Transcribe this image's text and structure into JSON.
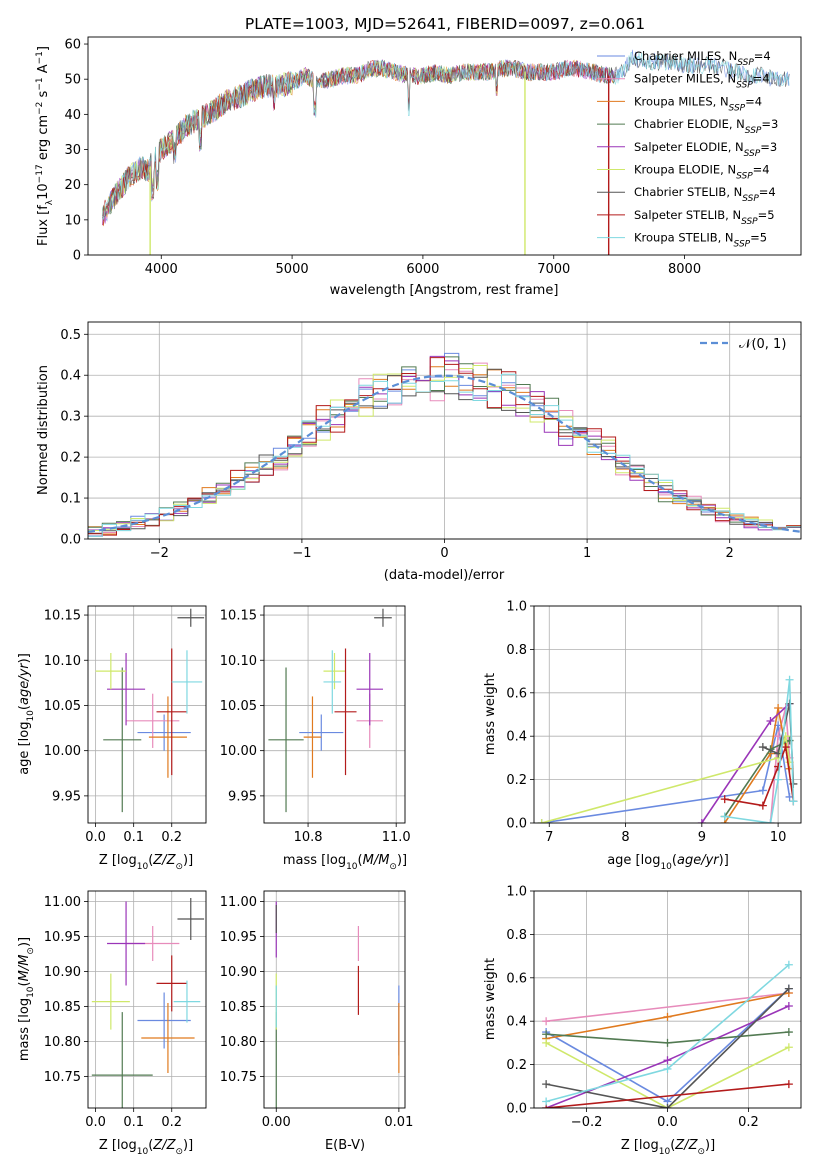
{
  "figure_title": "PLATE=1003, MJD=52641, FIBERID=0097, z=0.061",
  "colors": [
    "#6a8ae0",
    "#e78bbb",
    "#e07a1f",
    "#527a52",
    "#9a35b8",
    "#cfe86a",
    "#555555",
    "#b31b1b",
    "#7fd8e0"
  ],
  "chart_data": [
    {
      "id": "spectrum",
      "type": "line",
      "title": "PLATE=1003, MJD=52641, FIBERID=0097, z=0.061",
      "xlabel": "wavelength [Angstrom, rest frame]",
      "ylabel": "Flux [f",
      "ylabel_full": "Flux [fλ10⁻¹⁷ erg cm⁻² s⁻¹ A⁻¹]",
      "xlim": [
        3440,
        8890
      ],
      "ylim": [
        0,
        62
      ],
      "xticks": [
        4000,
        5000,
        6000,
        7000,
        8000
      ],
      "yticks": [
        0,
        10,
        20,
        30,
        40,
        50,
        60
      ],
      "legend_position": "right",
      "continuum": [
        [
          3550,
          11
        ],
        [
          3650,
          17
        ],
        [
          3750,
          22
        ],
        [
          3850,
          25
        ],
        [
          3900,
          24
        ],
        [
          3950,
          28
        ],
        [
          4000,
          30
        ],
        [
          4100,
          33
        ],
        [
          4200,
          37
        ],
        [
          4300,
          39
        ],
        [
          4400,
          41
        ],
        [
          4500,
          44
        ],
        [
          4600,
          45
        ],
        [
          4700,
          47
        ],
        [
          4800,
          48
        ],
        [
          4900,
          48
        ],
        [
          5000,
          49
        ],
        [
          5100,
          51
        ],
        [
          5200,
          49
        ],
        [
          5300,
          50
        ],
        [
          5400,
          51
        ],
        [
          5500,
          51
        ],
        [
          5600,
          53
        ],
        [
          5700,
          53
        ],
        [
          5800,
          52
        ],
        [
          5900,
          51
        ],
        [
          6000,
          51
        ],
        [
          6100,
          52
        ],
        [
          6200,
          51
        ],
        [
          6300,
          52
        ],
        [
          6400,
          52
        ],
        [
          6500,
          52
        ],
        [
          6600,
          53
        ],
        [
          6700,
          53
        ],
        [
          6800,
          52
        ],
        [
          6900,
          52
        ],
        [
          7000,
          52
        ],
        [
          7100,
          53
        ],
        [
          7200,
          53
        ],
        [
          7300,
          52
        ],
        [
          7400,
          51
        ],
        [
          7500,
          51
        ],
        [
          7600,
          56
        ],
        [
          7700,
          55
        ],
        [
          7800,
          55
        ],
        [
          7900,
          55
        ],
        [
          8000,
          54
        ],
        [
          8100,
          54
        ],
        [
          8200,
          54
        ],
        [
          8300,
          53
        ],
        [
          8400,
          52
        ],
        [
          8500,
          51
        ],
        [
          8600,
          51
        ],
        [
          8700,
          50
        ],
        [
          8780,
          50
        ]
      ],
      "dropouts": [
        {
          "series": 5,
          "x": 3915,
          "to": 0
        },
        {
          "series": 5,
          "x": 6780,
          "to": 0
        },
        {
          "series": 7,
          "x": 7420,
          "to": 0
        }
      ],
      "series": [
        {
          "name": "Chabrier MILES, N",
          "suffix": "SSP",
          "n": "=4",
          "xmax": 8800
        },
        {
          "name": "Salpeter MILES, N",
          "suffix": "SSP",
          "n": "=4",
          "xmax": 7480
        },
        {
          "name": "Kroupa MILES, N",
          "suffix": "SSP",
          "n": "=4",
          "xmax": 7480
        },
        {
          "name": "Chabrier ELODIE, N",
          "suffix": "SSP",
          "n": "=3",
          "xmax": 7480
        },
        {
          "name": "Salpeter ELODIE, N",
          "suffix": "SSP",
          "n": "=3",
          "xmax": 7480
        },
        {
          "name": "Kroupa ELODIE, N",
          "suffix": "SSP",
          "n": "=4",
          "xmax": 6800
        },
        {
          "name": "Chabrier STELIB, N",
          "suffix": "SSP",
          "n": "=4",
          "xmax": 8800
        },
        {
          "name": "Salpeter STELIB, N",
          "suffix": "SSP",
          "n": "=5",
          "xmax": 7420
        },
        {
          "name": "Kroupa STELIB, N",
          "suffix": "SSP",
          "n": "=5",
          "xmax": 8800
        }
      ]
    },
    {
      "id": "residuals",
      "type": "histogram",
      "xlabel": "(data-model)/error",
      "ylabel": "Normed distribution",
      "xlim": [
        -2.5,
        2.5
      ],
      "ylim": [
        0,
        0.53
      ],
      "xticks": [
        -2,
        -1,
        0,
        1,
        2
      ],
      "yticks": [
        0.0,
        0.1,
        0.2,
        0.3,
        0.4,
        0.5
      ],
      "grid": true,
      "legend_label": "𝒩(0, 1)",
      "legend_position": "top-right",
      "bin_width": 0.1,
      "bin_start": -2.5
    },
    {
      "id": "age_vs_Z",
      "type": "errorbar",
      "xlabel": "Z [log",
      "xlabel_full": "Z [log10(Z/Z⊙)]",
      "ylabel_full": "age [log10(age/yr)]",
      "xlim": [
        -0.02,
        0.29
      ],
      "ylim": [
        9.92,
        10.16
      ],
      "xticks": [
        0.0,
        0.1,
        0.2
      ],
      "yticks": [
        9.95,
        10.0,
        10.05,
        10.1,
        10.15
      ],
      "grid": true,
      "points": [
        {
          "s": 0,
          "x": 0.18,
          "y": 10.02,
          "xerr": 0.07,
          "yerr": 0.02
        },
        {
          "s": 1,
          "x": 0.15,
          "y": 10.033,
          "xerr": 0.07,
          "yerr": 0.03
        },
        {
          "s": 2,
          "x": 0.19,
          "y": 10.015,
          "xerr": 0.05,
          "yerr": 0.045
        },
        {
          "s": 3,
          "x": 0.07,
          "y": 10.012,
          "xerr": 0.05,
          "yerr": 0.08
        },
        {
          "s": 4,
          "x": 0.08,
          "y": 10.068,
          "xerr": 0.05,
          "yerr": 0.04
        },
        {
          "s": 5,
          "x": 0.04,
          "y": 10.088,
          "xerr": 0.04,
          "yerr": 0.02
        },
        {
          "s": 6,
          "x": 0.25,
          "y": 10.147,
          "xerr": 0.035,
          "yerr": 0.01
        },
        {
          "s": 7,
          "x": 0.2,
          "y": 10.043,
          "xerr": 0.04,
          "yerr": 0.07
        },
        {
          "s": 8,
          "x": 0.24,
          "y": 10.076,
          "xerr": 0.04,
          "yerr": 0.035
        }
      ]
    },
    {
      "id": "age_vs_mass",
      "type": "errorbar",
      "xlabel_full": "mass [log10(M/M⊙)]",
      "xlim": [
        10.7,
        11.02
      ],
      "ylim": [
        9.92,
        10.16
      ],
      "xticks": [
        10.8,
        11.0
      ],
      "yticks": [
        9.95,
        10.0,
        10.05,
        10.1,
        10.15
      ],
      "grid": true,
      "points": [
        {
          "s": 0,
          "x": 10.83,
          "y": 10.02,
          "xerr": 0.05,
          "yerr": 0.02
        },
        {
          "s": 1,
          "x": 10.94,
          "y": 10.033,
          "xerr": 0.03,
          "yerr": 0.03
        },
        {
          "s": 2,
          "x": 10.81,
          "y": 10.015,
          "xerr": 0.02,
          "yerr": 0.045
        },
        {
          "s": 3,
          "x": 10.75,
          "y": 10.012,
          "xerr": 0.04,
          "yerr": 0.08
        },
        {
          "s": 4,
          "x": 10.94,
          "y": 10.068,
          "xerr": 0.03,
          "yerr": 0.04
        },
        {
          "s": 5,
          "x": 10.86,
          "y": 10.088,
          "xerr": 0.025,
          "yerr": 0.02
        },
        {
          "s": 6,
          "x": 10.97,
          "y": 10.147,
          "xerr": 0.02,
          "yerr": 0.01
        },
        {
          "s": 7,
          "x": 10.885,
          "y": 10.043,
          "xerr": 0.025,
          "yerr": 0.07
        },
        {
          "s": 8,
          "x": 10.855,
          "y": 10.076,
          "xerr": 0.02,
          "yerr": 0.035
        }
      ]
    },
    {
      "id": "massweight_vs_age",
      "type": "line",
      "xlabel_full": "age [log10(age/yr)]",
      "ylabel": "mass weight",
      "xlim": [
        6.8,
        10.3
      ],
      "ylim": [
        0,
        1.0
      ],
      "xticks": [
        7,
        8,
        9,
        10
      ],
      "yticks": [
        0.0,
        0.2,
        0.4,
        0.6,
        0.8,
        1.0
      ],
      "grid": true,
      "series": [
        [
          [
            6.9,
            0.0
          ],
          [
            9.8,
            0.15
          ],
          [
            10.0,
            0.45
          ],
          [
            10.15,
            0.12
          ]
        ],
        [
          [
            9.9,
            0.0
          ],
          [
            10.0,
            0.4
          ],
          [
            10.1,
            0.53
          ],
          [
            10.15,
            0.3
          ]
        ],
        [
          [
            9.3,
            0.0
          ],
          [
            9.9,
            0.32
          ],
          [
            10.0,
            0.53
          ],
          [
            10.15,
            0.25
          ]
        ],
        [
          [
            9.3,
            0.03
          ],
          [
            9.9,
            0.34
          ],
          [
            10.15,
            0.38
          ]
        ],
        [
          [
            9.0,
            0.0
          ],
          [
            9.9,
            0.47
          ],
          [
            10.15,
            0.55
          ]
        ],
        [
          [
            6.9,
            0.0
          ],
          [
            10.0,
            0.3
          ],
          [
            10.1,
            0.4
          ],
          [
            10.15,
            0.28
          ]
        ],
        [
          [
            9.8,
            0.35
          ],
          [
            10.0,
            0.32
          ],
          [
            10.15,
            0.55
          ],
          [
            10.2,
            0.18
          ]
        ],
        [
          [
            9.3,
            0.11
          ],
          [
            9.8,
            0.08
          ],
          [
            10.0,
            0.26
          ],
          [
            10.1,
            0.35
          ],
          [
            10.2,
            0.1
          ]
        ],
        [
          [
            9.3,
            0.03
          ],
          [
            9.9,
            0.0
          ],
          [
            10.0,
            0.2
          ],
          [
            10.15,
            0.66
          ],
          [
            10.2,
            0.1
          ]
        ]
      ]
    },
    {
      "id": "mass_vs_Z",
      "type": "errorbar",
      "xlabel_full": "Z [log10(Z/Z⊙)]",
      "ylabel_full": "mass [log10(M/M⊙)]",
      "xlim": [
        -0.02,
        0.29
      ],
      "ylim": [
        10.705,
        11.015
      ],
      "xticks": [
        0.0,
        0.1,
        0.2
      ],
      "yticks": [
        10.75,
        10.8,
        10.85,
        10.9,
        10.95,
        11.0
      ],
      "grid": true,
      "points": [
        {
          "s": 0,
          "x": 0.18,
          "y": 10.83,
          "xerr": 0.07,
          "yerr": 0.04
        },
        {
          "s": 1,
          "x": 0.15,
          "y": 10.94,
          "xerr": 0.07,
          "yerr": 0.025
        },
        {
          "s": 2,
          "x": 0.19,
          "y": 10.805,
          "xerr": 0.07,
          "yerr": 0.05
        },
        {
          "s": 3,
          "x": 0.07,
          "y": 10.752,
          "xerr": 0.08,
          "yerr": 0.09
        },
        {
          "s": 4,
          "x": 0.08,
          "y": 10.94,
          "xerr": 0.05,
          "yerr": 0.06
        },
        {
          "s": 5,
          "x": 0.04,
          "y": 10.857,
          "xerr": 0.05,
          "yerr": 0.04
        },
        {
          "s": 6,
          "x": 0.25,
          "y": 10.975,
          "xerr": 0.035,
          "yerr": 0.03
        },
        {
          "s": 7,
          "x": 0.2,
          "y": 10.883,
          "xerr": 0.04,
          "yerr": 0.04
        },
        {
          "s": 8,
          "x": 0.24,
          "y": 10.857,
          "xerr": 0.035,
          "yerr": 0.03
        }
      ]
    },
    {
      "id": "mass_vs_EBV",
      "type": "errorbar",
      "xlabel": "E(B-V)",
      "xlim": [
        -0.001,
        0.0105
      ],
      "ylim": [
        10.705,
        11.015
      ],
      "xticks": [
        0.0,
        0.01
      ],
      "yticks": [
        10.75,
        10.8,
        10.85,
        10.9,
        10.95,
        11.0
      ],
      "grid": true,
      "points": [
        {
          "s": 0,
          "x": 0.01,
          "y": 10.83,
          "xerr": 0,
          "yerr": 0.05
        },
        {
          "s": 1,
          "x": 0.0067,
          "y": 10.94,
          "xerr": 0,
          "yerr": 0.025
        },
        {
          "s": 2,
          "x": 0.01,
          "y": 10.805,
          "xerr": 0,
          "yerr": 0.05
        },
        {
          "s": 3,
          "x": 0.0,
          "y": 10.752,
          "xerr": 0,
          "yerr": 0.09
        },
        {
          "s": 4,
          "x": 0.0,
          "y": 10.96,
          "xerr": 0,
          "yerr": 0.04
        },
        {
          "s": 5,
          "x": 0.0,
          "y": 10.857,
          "xerr": 0,
          "yerr": 0.04
        },
        {
          "s": 6,
          "x": 0.0,
          "y": 10.975,
          "xerr": 0,
          "yerr": 0.02
        },
        {
          "s": 7,
          "x": 0.0067,
          "y": 10.873,
          "xerr": 0,
          "yerr": 0.035
        },
        {
          "s": 8,
          "x": 0.0,
          "y": 10.85,
          "xerr": 0,
          "yerr": 0.03
        }
      ]
    },
    {
      "id": "massweight_vs_Z",
      "type": "line",
      "xlabel_full": "Z [log10(Z/Z⊙)]",
      "ylabel": "mass weight",
      "xlim": [
        -0.33,
        0.33
      ],
      "ylim": [
        0,
        1.0
      ],
      "xticks": [
        -0.2,
        0.0,
        0.2
      ],
      "yticks": [
        0.0,
        0.2,
        0.4,
        0.6,
        0.8,
        1.0
      ],
      "grid": true,
      "series": [
        [
          [
            -0.3,
            0.35
          ],
          [
            0.0,
            0.03
          ],
          [
            0.3,
            0.55
          ]
        ],
        [
          [
            -0.3,
            0.4
          ],
          [
            0.3,
            0.53
          ]
        ],
        [
          [
            -0.3,
            0.32
          ],
          [
            0.0,
            0.42
          ],
          [
            0.3,
            0.53
          ]
        ],
        [
          [
            -0.3,
            0.34
          ],
          [
            0.0,
            0.3
          ],
          [
            0.3,
            0.35
          ]
        ],
        [
          [
            -0.3,
            0.0
          ],
          [
            0.0,
            0.22
          ],
          [
            0.3,
            0.47
          ]
        ],
        [
          [
            -0.3,
            0.3
          ],
          [
            0.0,
            0.0
          ],
          [
            0.3,
            0.28
          ]
        ],
        [
          [
            -0.3,
            0.11
          ],
          [
            0.0,
            0.0
          ],
          [
            0.3,
            0.55
          ]
        ],
        [
          [
            -0.3,
            0.0
          ],
          [
            0.3,
            0.11
          ]
        ],
        [
          [
            -0.3,
            0.03
          ],
          [
            0.0,
            0.18
          ],
          [
            0.3,
            0.66
          ]
        ]
      ]
    }
  ]
}
